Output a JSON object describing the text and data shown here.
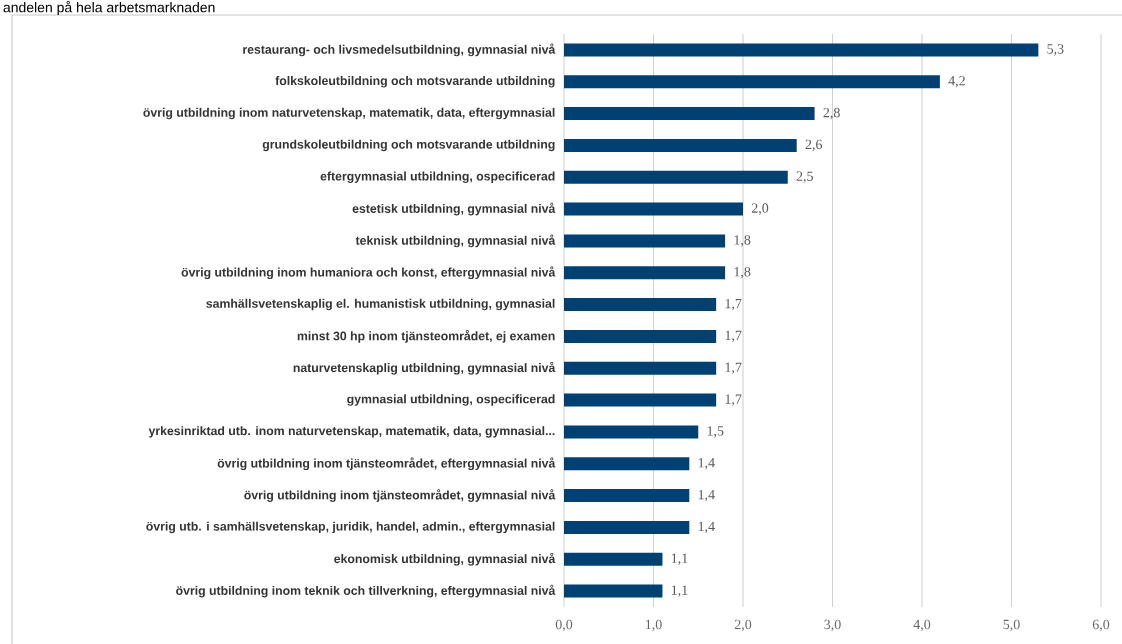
{
  "chart_data": {
    "type": "bar",
    "orientation": "horizontal",
    "title": "andelen på hela arbetsmarknaden",
    "categories": [
      "restaurang- och livsmedelsutbildning, gymnasial nivå",
      "folkskoleutbildning och motsvarande utbildning",
      "övrig utbildning inom naturvetenskap, matematik, data, eftergymnasial",
      "grundskoleutbildning och motsvarande utbildning",
      "eftergymnasial utbildning, ospecificerad",
      "estetisk utbildning, gymnasial nivå",
      "teknisk utbildning, gymnasial nivå",
      "övrig utbildning inom humaniora och konst, eftergymnasial nivå",
      "samhällsvetenskaplig el. humanistisk utbildning, gymnasial",
      "minst 30 hp inom tjänsteområdet, ej examen",
      "naturvetenskaplig utbildning, gymnasial nivå",
      "gymnasial utbildning, ospecificerad",
      "yrkesinriktad utb. inom naturvetenskap, matematik, data, gymnasial...",
      "övrig utbildning inom tjänsteområdet, eftergymnasial nivå",
      "övrig utbildning inom tjänsteområdet, gymnasial nivå",
      "övrig utb. i samhällsvetenskap, juridik, handel, admin., eftergymnasial",
      "ekonomisk utbildning, gymnasial nivå",
      "övrig utbildning inom teknik och tillverkning, eftergymnasial nivå"
    ],
    "values": [
      5.3,
      4.2,
      2.8,
      2.6,
      2.5,
      2.0,
      1.8,
      1.8,
      1.7,
      1.7,
      1.7,
      1.7,
      1.5,
      1.4,
      1.4,
      1.4,
      1.1,
      1.1
    ],
    "value_labels": [
      "5,3",
      "4,2",
      "2,8",
      "2,6",
      "2,5",
      "2,0",
      "1,8",
      "1,8",
      "1,7",
      "1,7",
      "1,7",
      "1,7",
      "1,5",
      "1,4",
      "1,4",
      "1,4",
      "1,1",
      "1,1"
    ],
    "color": "#004174",
    "xlim": [
      0,
      6
    ],
    "xticks": [
      {
        "value": 0,
        "label": "0,0"
      },
      {
        "value": 1,
        "label": "1,0"
      },
      {
        "value": 2,
        "label": "2,0"
      },
      {
        "value": 3,
        "label": "3,0"
      },
      {
        "value": 4,
        "label": "4,0"
      },
      {
        "value": 5,
        "label": "5,0"
      },
      {
        "value": 6,
        "label": "6,0"
      }
    ],
    "grid": "x"
  }
}
